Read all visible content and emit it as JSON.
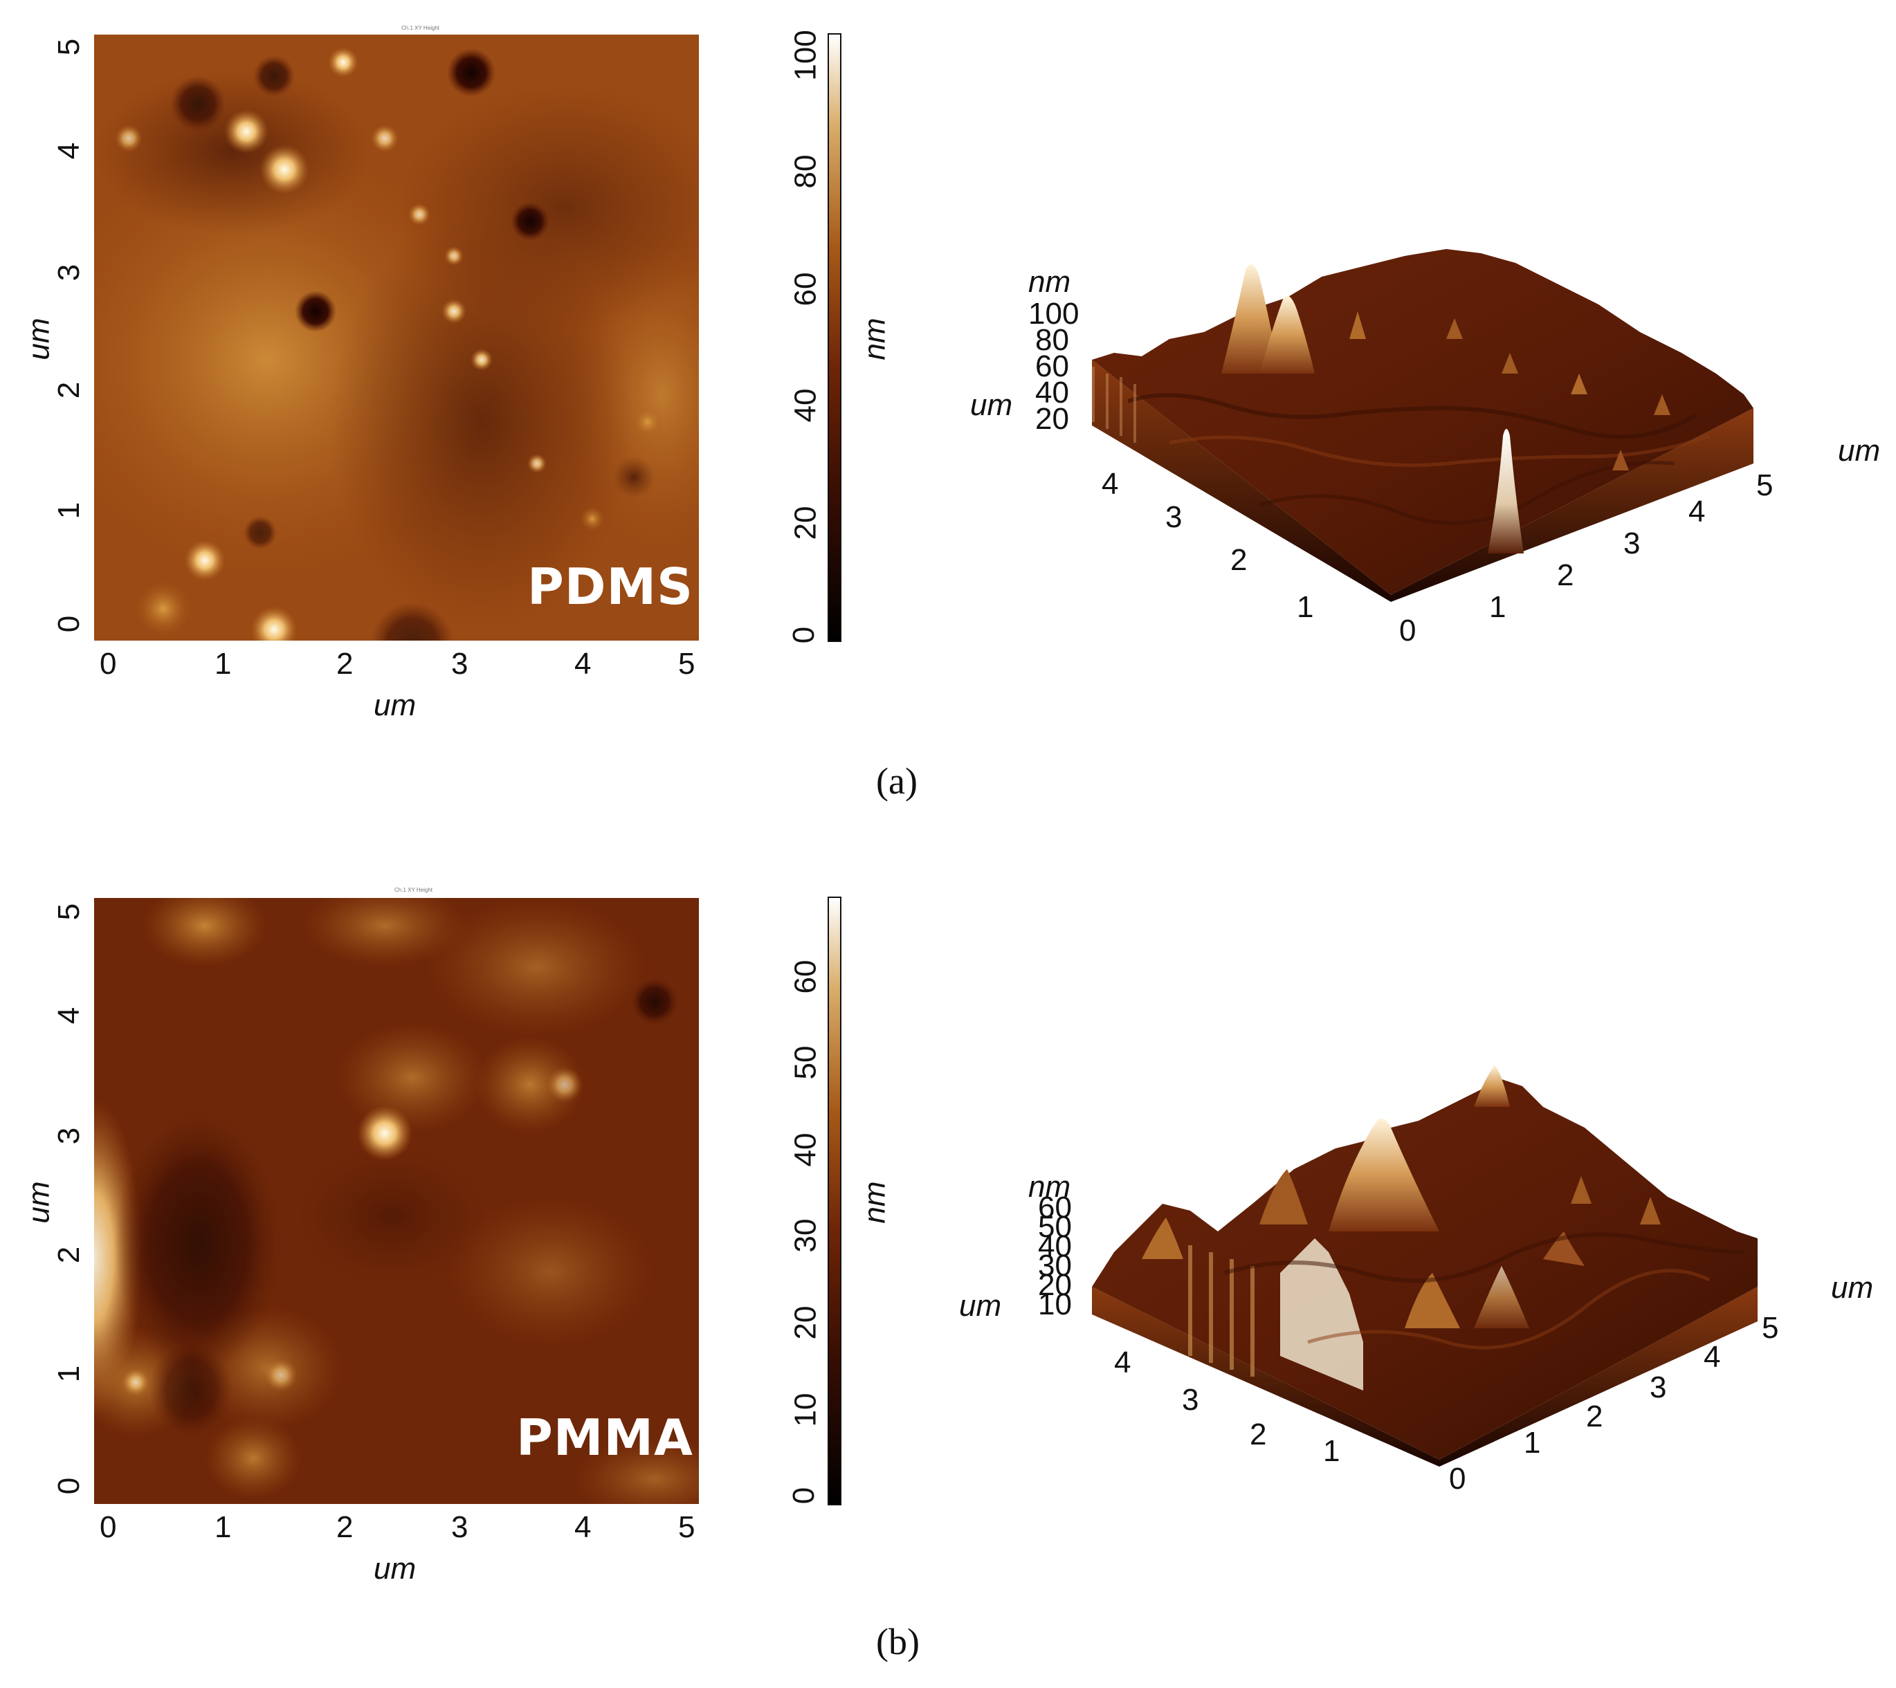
{
  "panels": [
    {
      "caption": "(a)",
      "sample_label": "PDMS",
      "tiny_title": "Ch.1 XY Height",
      "map_x_label": "um",
      "map_y_label": "um",
      "map_ticks": [
        "0",
        "1",
        "2",
        "3",
        "4",
        "5"
      ],
      "colorbar_unit": "nm",
      "colorbar_ticks": [
        "0",
        "20",
        "40",
        "60",
        "80",
        "100"
      ],
      "surf_z_unit": "nm",
      "surf_z_ticks": [
        "100",
        "80",
        "60",
        "40",
        "20"
      ],
      "surf_left_unit": "um",
      "surf_right_unit": "um",
      "surf_left_ticks": [
        "4",
        "3",
        "2",
        "1"
      ],
      "surf_right_ticks": [
        "0",
        "1",
        "2",
        "3",
        "4",
        "5"
      ]
    },
    {
      "caption": "(b)",
      "sample_label": "PMMA",
      "tiny_title": "Ch.1 XY Height",
      "map_x_label": "um",
      "map_y_label": "um",
      "map_ticks": [
        "0",
        "1",
        "2",
        "3",
        "4",
        "5"
      ],
      "colorbar_unit": "nm",
      "colorbar_ticks": [
        "0",
        "10",
        "20",
        "30",
        "40",
        "50",
        "60"
      ],
      "surf_z_unit": "nm",
      "surf_z_ticks": [
        "60",
        "50",
        "40",
        "30",
        "20",
        "10"
      ],
      "surf_left_unit": "um",
      "surf_right_unit": "um",
      "surf_left_ticks": [
        "4",
        "3",
        "2",
        "1"
      ],
      "surf_right_ticks": [
        "0",
        "1",
        "2",
        "3",
        "4",
        "5"
      ]
    }
  ],
  "colors": {
    "dark": "#2a0a02",
    "mid": "#7a2a0a",
    "light": "#c98a3a",
    "bright": "#fff6e0"
  }
}
